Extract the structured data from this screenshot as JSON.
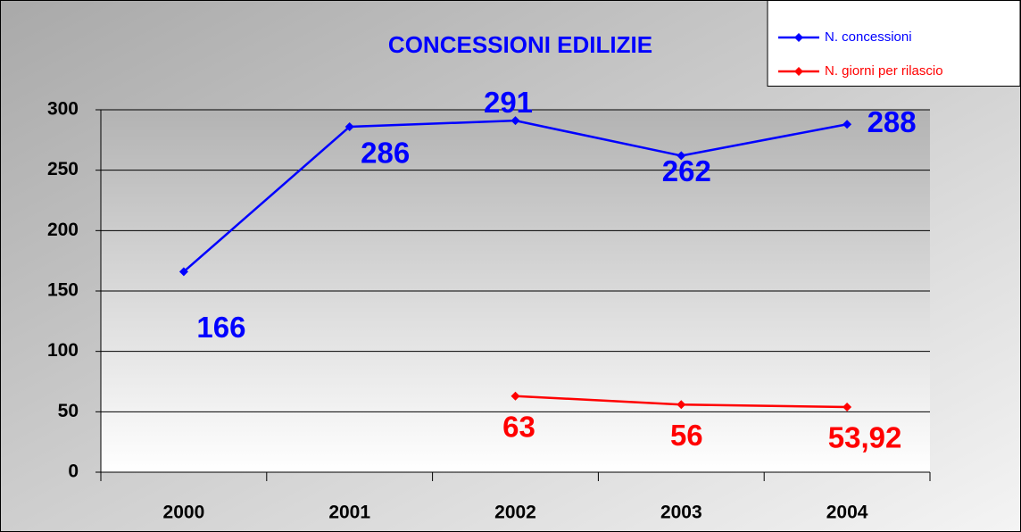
{
  "chart_data": {
    "type": "line",
    "title": "CONCESSIONI EDILIZIE",
    "categories": [
      "2000",
      "2001",
      "2002",
      "2003",
      "2004"
    ],
    "series": [
      {
        "name": "N. concessioni",
        "color": "#0000ff",
        "values": [
          166,
          286,
          291,
          262,
          288
        ]
      },
      {
        "name": "N. giorni per rilascio",
        "color": "#ff0000",
        "values": [
          null,
          null,
          63,
          56,
          53.92
        ],
        "value_labels": [
          null,
          null,
          "63",
          "56",
          "53,92"
        ]
      }
    ],
    "ylim": [
      0,
      300
    ],
    "yticks": [
      0,
      50,
      100,
      150,
      200,
      250,
      300
    ],
    "grid": true,
    "legend": "top-right"
  }
}
